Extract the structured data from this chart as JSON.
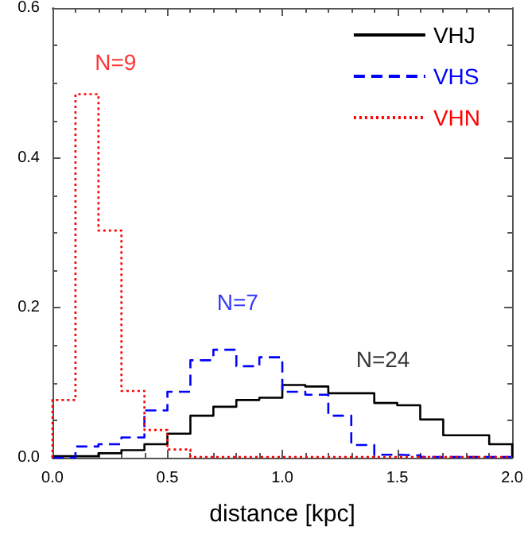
{
  "chart_data": {
    "type": "histogram",
    "xlabel": "distance [kpc]",
    "bins": [
      0.0,
      0.1,
      0.2,
      0.3,
      0.4,
      0.5,
      0.6,
      0.7,
      0.8,
      0.9,
      1.0,
      1.1,
      1.2,
      1.3,
      1.4,
      1.5,
      1.6,
      1.7,
      1.8,
      1.9,
      2.0
    ],
    "series": [
      {
        "name": "VHJ",
        "color": "#000000",
        "line_style": "solid",
        "values": [
          0.002,
          0.002,
          0.006,
          0.01,
          0.018,
          0.032,
          0.056,
          0.068,
          0.077,
          0.08,
          0.097,
          0.095,
          0.086,
          0.086,
          0.073,
          0.07,
          0.051,
          0.03,
          0.03,
          0.018
        ]
      },
      {
        "name": "VHS",
        "color": "#0000ff",
        "line_style": "dashed",
        "values": [
          0,
          0.015,
          0.018,
          0.027,
          0.063,
          0.088,
          0.13,
          0.144,
          0.122,
          0.134,
          0.088,
          0.084,
          0.056,
          0.017,
          0.004,
          0.003,
          0.001,
          0.001,
          0.001,
          0.001
        ]
      },
      {
        "name": "VHN",
        "color": "#ff0000",
        "line_style": "dotted",
        "values": [
          0.077,
          0.485,
          0.303,
          0.089,
          0.037,
          0.011,
          0.001,
          0.001,
          0.001,
          0.001,
          0.001,
          0.001,
          0.001,
          0.001,
          0.001,
          0.001,
          0.001,
          0.001,
          0.001,
          0.001
        ]
      }
    ],
    "annotations": [
      "N=24",
      "N=7",
      "N=9"
    ],
    "xlim": [
      0,
      2.0
    ],
    "xticks": [
      {
        "value": 0,
        "label": "0.0"
      },
      0.5,
      {
        "value": 1,
        "label": "1.0"
      },
      1.5,
      {
        "value": 2,
        "label": "2.0"
      }
    ],
    "ylim": [
      0,
      0.6
    ],
    "yticks": [
      {
        "value": 0,
        "label": "0.0"
      },
      0.2,
      0.4,
      0.6
    ],
    "legend": "top right",
    "grid": false
  }
}
